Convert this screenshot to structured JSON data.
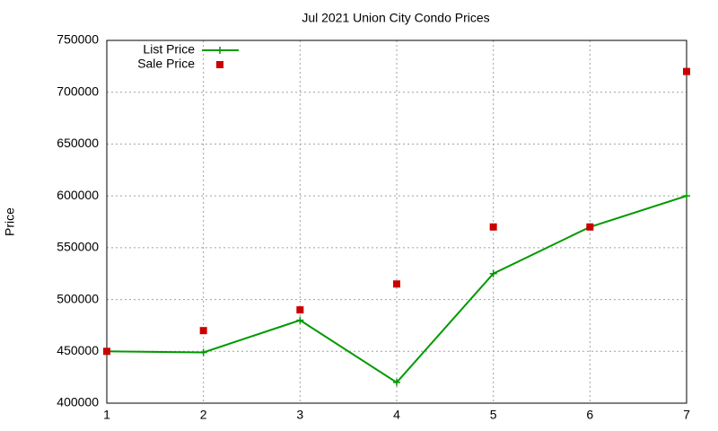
{
  "chart_data": {
    "type": "line",
    "title": "Jul 2021 Union City Condo Prices",
    "y_label": "Price",
    "x": [
      1,
      2,
      3,
      4,
      5,
      6,
      7
    ],
    "series": [
      {
        "name": "List Price",
        "color": "#009900",
        "style": "linespoints",
        "values": [
          450000,
          449000,
          480000,
          420000,
          525000,
          570000,
          600000
        ]
      },
      {
        "name": "Sale Price",
        "color": "#cc0000",
        "style": "points",
        "values": [
          450000,
          470000,
          490000,
          515000,
          570000,
          570000,
          720000
        ]
      }
    ],
    "xlim": [
      1,
      7
    ],
    "xticks": [
      1,
      2,
      3,
      4,
      5,
      6,
      7
    ],
    "ylim": [
      400000,
      750000
    ],
    "yticks": [
      400000,
      450000,
      500000,
      550000,
      600000,
      650000,
      700000,
      750000
    ],
    "grid": true,
    "legend": "top-left"
  }
}
